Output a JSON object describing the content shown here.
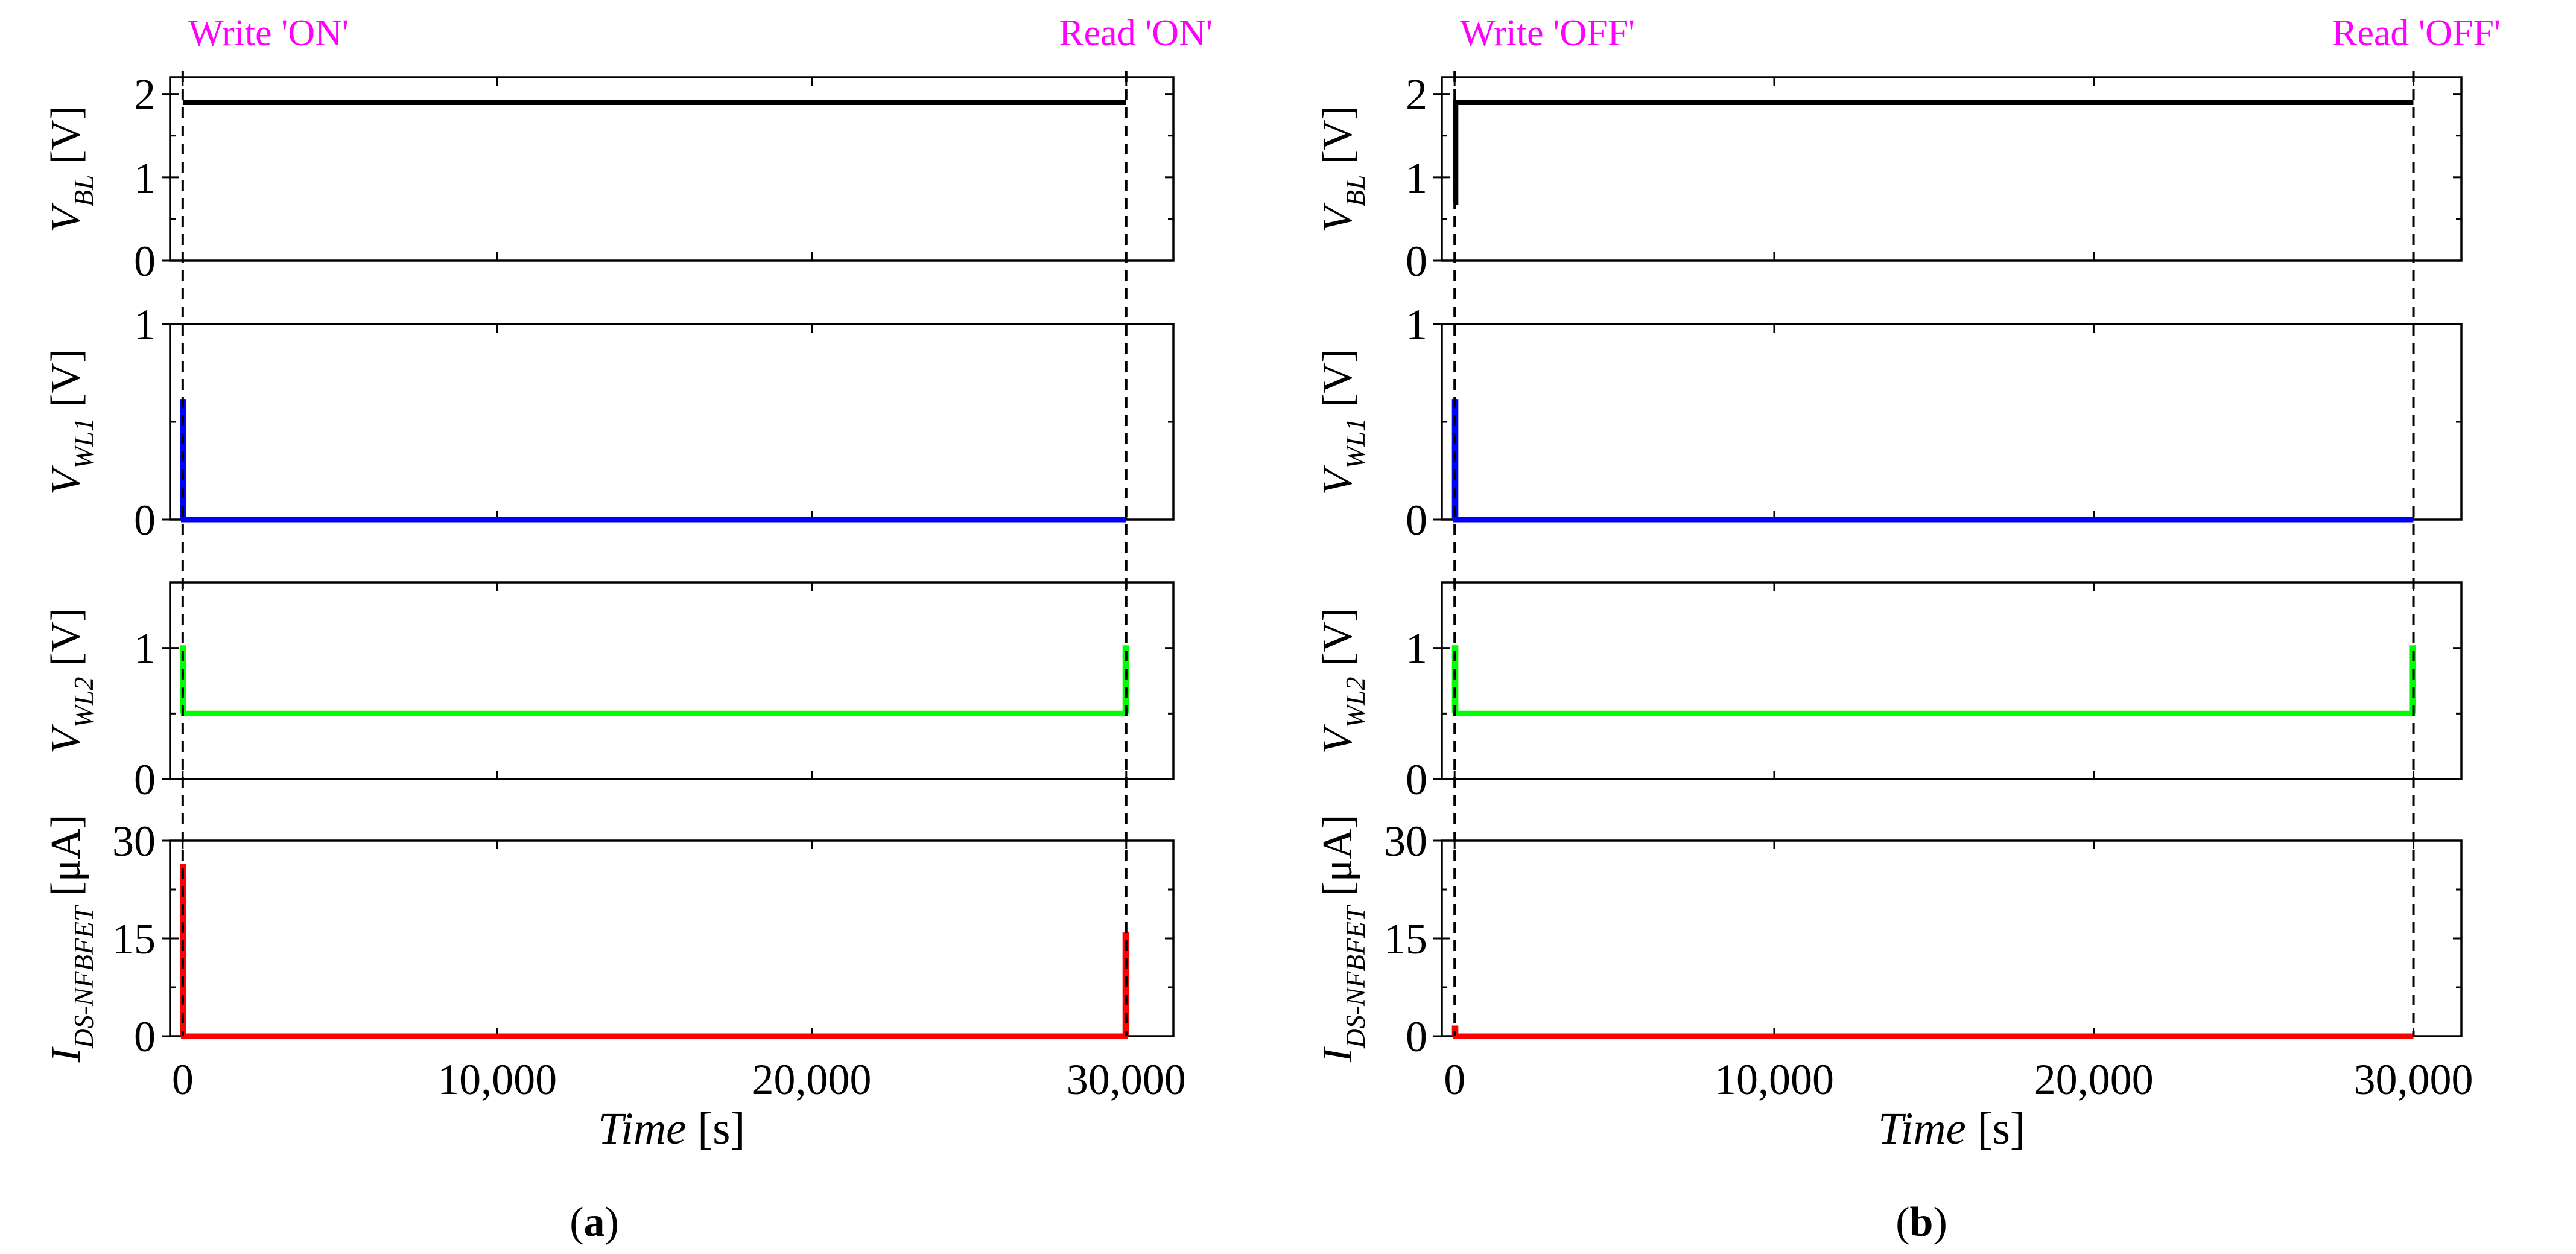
{
  "chart_data": [
    {
      "type": "line",
      "panel": "a",
      "caption_label": "a",
      "write_label": "Write 'ON'",
      "read_label": "Read 'ON'",
      "annotation_color": "#ff00ff",
      "xlabel_var": "Time",
      "xlabel_unit": "[s]",
      "xlim": [
        -400,
        31500
      ],
      "xticks": [
        0,
        10000,
        20000,
        30000
      ],
      "xtick_labels": [
        "0",
        "10,000",
        "20,000",
        "30,000"
      ],
      "write_time": 0,
      "read_time": 30000,
      "subplots": [
        {
          "key": "vbl",
          "ylabel_main": "V",
          "ylabel_sub": "BL",
          "ylabel_unit": "[V]",
          "ylim": [
            0,
            2.2
          ],
          "yticks": [
            0,
            1,
            2
          ],
          "ytick_labels": [
            "0",
            "1",
            "2"
          ],
          "color": "#000000",
          "series": {
            "name": "V_BL",
            "x": [
              0,
              30000
            ],
            "values": [
              1.9,
              1.9
            ]
          }
        },
        {
          "key": "vwl1",
          "ylabel_main": "V",
          "ylabel_sub": "WL1",
          "ylabel_unit": "[V]",
          "ylim": [
            0,
            1
          ],
          "yticks": [
            0,
            1
          ],
          "ytick_labels": [
            "0",
            "1"
          ],
          "color": "#0000ff",
          "series": {
            "name": "V_WL1",
            "x": [
              0,
              0,
              30,
              30,
              30000
            ],
            "values": [
              0,
              0.6,
              0.6,
              0,
              0
            ]
          }
        },
        {
          "key": "vwl2",
          "ylabel_main": "V",
          "ylabel_sub": "WL2",
          "ylabel_unit": "[V]",
          "ylim": [
            0,
            1.5
          ],
          "yticks": [
            0,
            1
          ],
          "ytick_labels": [
            "0",
            "1"
          ],
          "color": "#00ff00",
          "series": {
            "name": "V_WL2",
            "x": [
              0,
              0,
              30,
              30,
              29970,
              29970,
              30000,
              30000
            ],
            "values": [
              0.5,
              1,
              1,
              0.5,
              0.5,
              1,
              1,
              0.5
            ]
          }
        },
        {
          "key": "ids",
          "ylabel_main": "I",
          "ylabel_sub": "DS-NFBFET",
          "ylabel_unit": "[μA]",
          "ylim": [
            0,
            30
          ],
          "yticks": [
            0,
            15,
            30
          ],
          "ytick_labels": [
            "0",
            "15",
            "30"
          ],
          "color": "#ff0000",
          "series": {
            "name": "I_DS-NFBFET",
            "x": [
              0,
              0,
              30,
              30,
              29970,
              29970,
              30000,
              30000
            ],
            "values": [
              0,
              26,
              26,
              0,
              0,
              15.5,
              15.5,
              0
            ]
          }
        }
      ]
    },
    {
      "type": "line",
      "panel": "b",
      "caption_label": "b",
      "write_label": "Write 'OFF'",
      "read_label": "Read 'OFF'",
      "annotation_color": "#ff00ff",
      "xlabel_var": "Time",
      "xlabel_unit": "[s]",
      "xlim": [
        -400,
        31500
      ],
      "xticks": [
        0,
        10000,
        20000,
        30000
      ],
      "xtick_labels": [
        "0",
        "10,000",
        "20,000",
        "30,000"
      ],
      "write_time": 0,
      "read_time": 30000,
      "subplots": [
        {
          "key": "vbl",
          "ylabel_main": "V",
          "ylabel_sub": "BL",
          "ylabel_unit": "[V]",
          "ylim": [
            0,
            2.2
          ],
          "yticks": [
            0,
            1,
            2
          ],
          "ytick_labels": [
            "0",
            "1",
            "2"
          ],
          "color": "#000000",
          "series": {
            "name": "V_BL",
            "x": [
              0,
              0,
              30,
              30,
              30000
            ],
            "values": [
              0.7,
              0.7,
              0.7,
              1.9,
              1.9
            ]
          }
        },
        {
          "key": "vwl1",
          "ylabel_main": "V",
          "ylabel_sub": "WL1",
          "ylabel_unit": "[V]",
          "ylim": [
            0,
            1
          ],
          "yticks": [
            0,
            1
          ],
          "ytick_labels": [
            "0",
            "1"
          ],
          "color": "#0000ff",
          "series": {
            "name": "V_WL1",
            "x": [
              0,
              0,
              30,
              30,
              30000
            ],
            "values": [
              0,
              0.6,
              0.6,
              0,
              0
            ]
          }
        },
        {
          "key": "vwl2",
          "ylabel_main": "V",
          "ylabel_sub": "WL2",
          "ylabel_unit": "[V]",
          "ylim": [
            0,
            1.5
          ],
          "yticks": [
            0,
            1
          ],
          "ytick_labels": [
            "0",
            "1"
          ],
          "color": "#00ff00",
          "series": {
            "name": "V_WL2",
            "x": [
              0,
              0,
              30,
              30,
              29970,
              29970,
              30000,
              30000
            ],
            "values": [
              0.5,
              1,
              1,
              0.5,
              0.5,
              1,
              1,
              0.5
            ]
          }
        },
        {
          "key": "ids",
          "ylabel_main": "I",
          "ylabel_sub": "DS-NFBFET",
          "ylabel_unit": "[μA]",
          "ylim": [
            0,
            30
          ],
          "yticks": [
            0,
            15,
            30
          ],
          "ytick_labels": [
            "0",
            "15",
            "30"
          ],
          "color": "#ff0000",
          "series": {
            "name": "I_DS-NFBFET",
            "x": [
              0,
              0,
              30,
              30,
              30000
            ],
            "values": [
              0,
              1.2,
              1.2,
              0,
              0
            ]
          }
        }
      ]
    }
  ]
}
